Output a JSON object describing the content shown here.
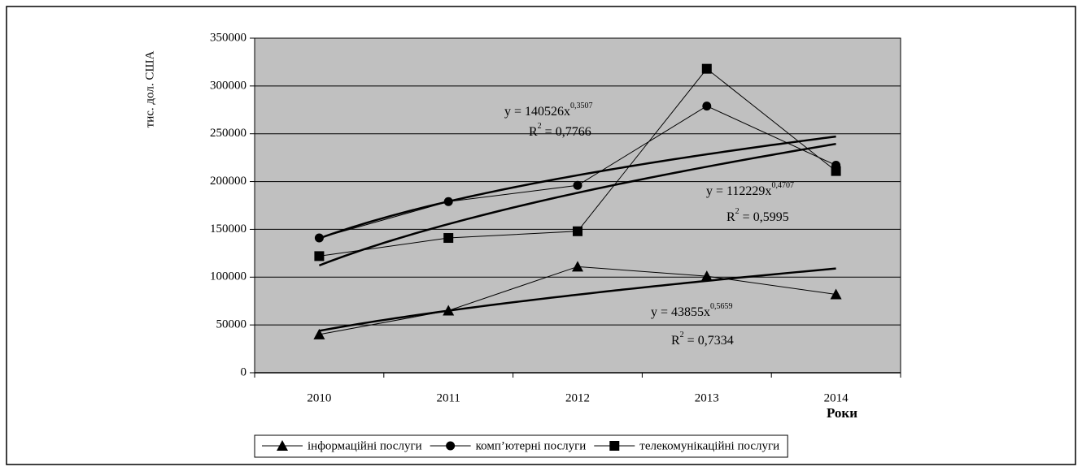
{
  "chart_data": {
    "type": "line",
    "y_label": "тис. дол. США",
    "x_label": "Роки",
    "categories": [
      "2010",
      "2011",
      "2012",
      "2013",
      "2014"
    ],
    "series": [
      {
        "name": "інформаційні послуги",
        "color": "#000000",
        "marker": "triangle",
        "values": [
          40000,
          65000,
          111000,
          101000,
          82000
        ]
      },
      {
        "name": "комп’ютерні послуги",
        "color": "#000000",
        "marker": "circle",
        "values": [
          141000,
          179000,
          196000,
          279000,
          217000
        ]
      },
      {
        "name": "телекомунікаційні послуги",
        "color": "#000000",
        "marker": "square",
        "values": [
          122000,
          141000,
          148000,
          318000,
          211000
        ]
      }
    ],
    "trendlines": [
      {
        "series": 1,
        "a": 140526,
        "b": 0.3507,
        "equation": [
          "y = 140526x",
          "0,3507"
        ],
        "r_squared": [
          "R",
          "2",
          " = 0,7766"
        ]
      },
      {
        "series": 2,
        "a": 112229,
        "b": 0.4707,
        "equation": [
          "y = 112229x",
          "0,4707"
        ],
        "r_squared": [
          "R",
          "2",
          " = 0,5995"
        ]
      },
      {
        "series": 0,
        "a": 43855,
        "b": 0.5659,
        "equation": [
          "y = 43855x",
          "0,5659"
        ],
        "r_squared": [
          "R",
          "2",
          " = 0,7334"
        ]
      }
    ],
    "ylim": [
      0,
      350000
    ],
    "yticks": [
      0,
      50000,
      100000,
      150000,
      200000,
      250000,
      300000,
      350000
    ],
    "grid": true,
    "plot_background": "#c0c0c0",
    "legend": "bottom"
  }
}
